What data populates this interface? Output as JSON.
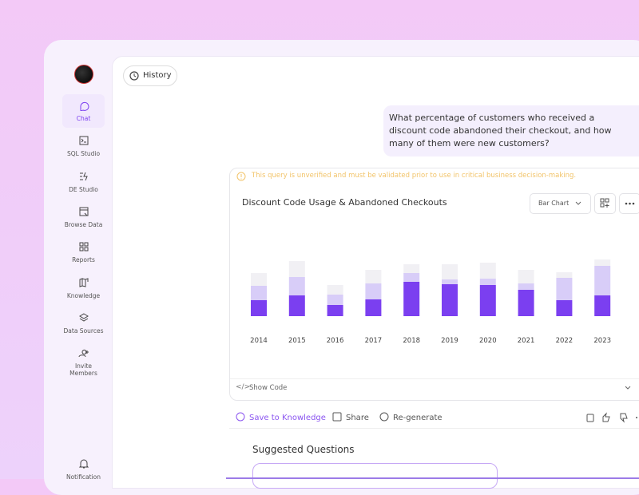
{
  "sidebar": {
    "items": [
      "Chat",
      "SQL Studio",
      "DE Studio",
      "Browse Data",
      "Reports",
      "Knowledge",
      "Data Sources",
      "Invite Members"
    ],
    "notification": "Notification"
  },
  "history": "History",
  "message": "What percentage of customers who received a discount code abandoned their checkout, and how many of them were new customers?",
  "warning": "This query is unverified and must be validated prior to use in critical business decision-making.",
  "chart_select": "Bar Chart",
  "chart_data": {
    "type": "bar",
    "title": "Discount Code Usage & Abandoned Checkouts",
    "categories": [
      "2014",
      "2015",
      "2016",
      "2017",
      "2018",
      "2019",
      "2020",
      "2021",
      "2022",
      "2023"
    ],
    "series": [
      {
        "color": "#7b3ff0",
        "values": [
          20,
          26,
          14,
          21,
          43,
          40,
          39,
          33,
          20,
          26
        ]
      },
      {
        "color": "#d8cdf8",
        "values": [
          18,
          23,
          13,
          20,
          11,
          6,
          8,
          8,
          28,
          37
        ]
      },
      {
        "color": "#f1f0f4",
        "values": [
          16,
          20,
          12,
          17,
          11,
          19,
          20,
          17,
          7,
          8
        ]
      }
    ],
    "ylim": [
      0,
      80
    ],
    "stacked": true
  },
  "show_code": "Show Code",
  "actions": [
    "Save to Knowledge",
    "Share",
    "Re-generate"
  ],
  "suggested_title": "Suggested Questions"
}
